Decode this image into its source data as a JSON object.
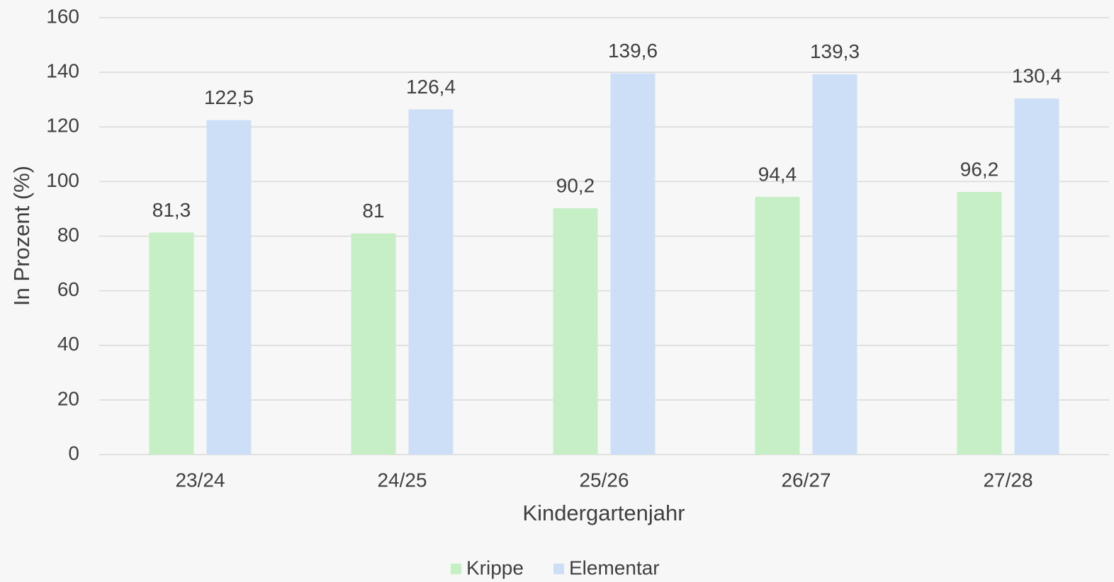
{
  "chart_data": {
    "type": "bar",
    "x_label": "Kindergartenjahr",
    "y_label": "In Prozent (%)",
    "categories": [
      "23/24",
      "24/25",
      "25/26",
      "26/27",
      "27/28"
    ],
    "series": [
      {
        "name": "Krippe",
        "color": "#c6efc6",
        "values": [
          81.3,
          81,
          90.2,
          94.4,
          96.2
        ],
        "value_labels": [
          "81,3",
          "81",
          "90,2",
          "94,4",
          "96,2"
        ]
      },
      {
        "name": "Elementar",
        "color": "#cddff7",
        "values": [
          122.5,
          126.4,
          139.6,
          139.3,
          130.4
        ],
        "value_labels": [
          "122,5",
          "126,4",
          "139,6",
          "139,3",
          "130,4"
        ]
      }
    ],
    "ylim": [
      0,
      160
    ],
    "yticks": [
      0,
      20,
      40,
      60,
      80,
      100,
      120,
      140,
      160
    ],
    "grid": true,
    "legend": "bottom"
  }
}
